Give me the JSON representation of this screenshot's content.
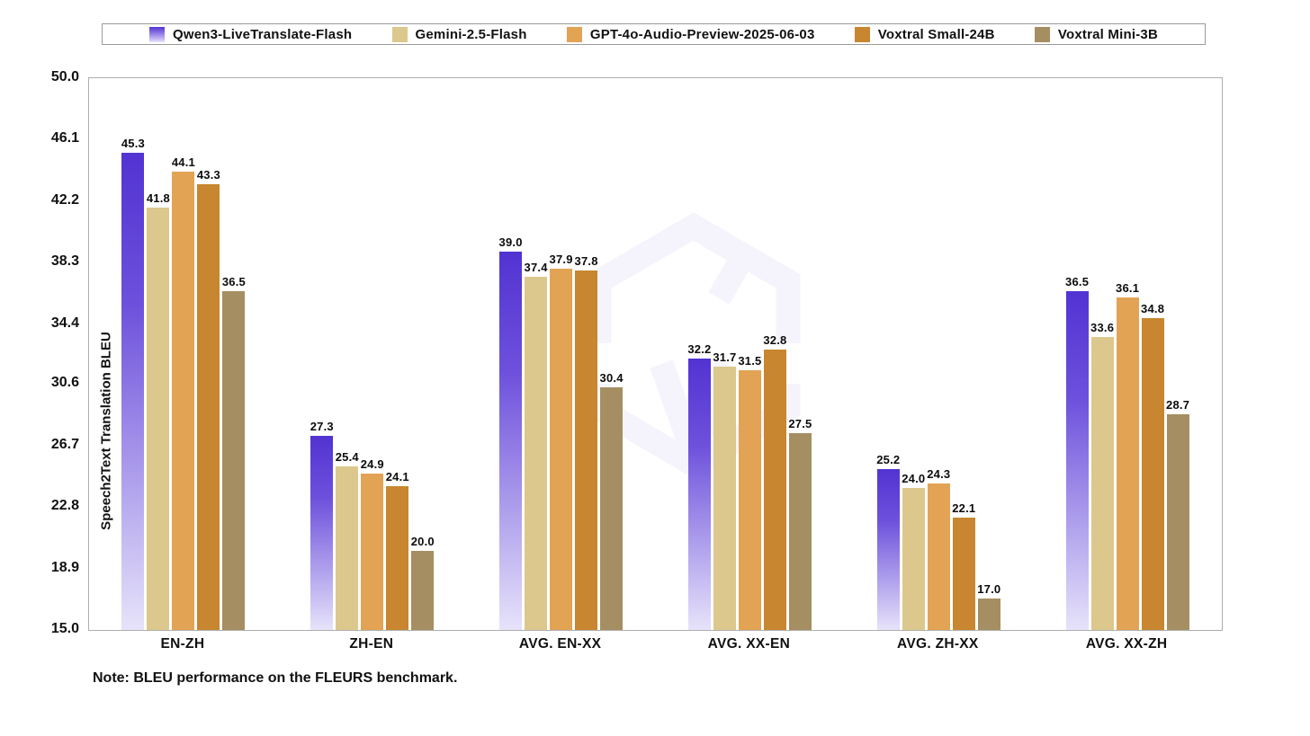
{
  "legend": {
    "items": [
      "Qwen3-LiveTranslate-Flash",
      "Gemini-2.5-Flash",
      "GPT-4o-Audio-Preview-2025-06-03",
      "Voxtral Small-24B",
      "Voxtral Mini-3B"
    ]
  },
  "chart_data": {
    "type": "bar",
    "title": "",
    "xlabel": "",
    "ylabel": "Speech2Text Translation BLEU",
    "ylim": [
      15.0,
      50.0
    ],
    "ytick_labels": [
      "50.0",
      "46.1",
      "42.2",
      "38.3",
      "34.4",
      "30.6",
      "26.7",
      "22.8",
      "18.9",
      "15.0"
    ],
    "grid": false,
    "legend_position": "top",
    "categories": [
      "EN-ZH",
      "ZH-EN",
      "AVG. EN-XX",
      "AVG. XX-EN",
      "AVG. ZH-XX",
      "AVG. XX-ZH"
    ],
    "series": [
      {
        "name": "Qwen3-LiveTranslate-Flash",
        "color_top": "#5233d2",
        "color_bottom": "#e7e3fa",
        "values": [
          45.3,
          27.3,
          39.0,
          32.2,
          25.2,
          36.5
        ]
      },
      {
        "name": "Gemini-2.5-Flash",
        "color": "#dcc88c",
        "values": [
          41.8,
          25.4,
          37.4,
          31.7,
          24.0,
          33.6
        ]
      },
      {
        "name": "GPT-4o-Audio-Preview-2025-06-03",
        "color": "#e2a355",
        "values": [
          44.1,
          24.9,
          37.9,
          31.5,
          24.3,
          36.1
        ]
      },
      {
        "name": "Voxtral Small-24B",
        "color": "#c7862f",
        "values": [
          43.3,
          24.1,
          37.8,
          32.8,
          22.1,
          34.8
        ]
      },
      {
        "name": "Voxtral Mini-3B",
        "color": "#a58e61",
        "values": [
          36.5,
          20.0,
          30.4,
          27.5,
          17.0,
          28.7
        ]
      }
    ],
    "note": "Note: BLEU performance on the FLEURS benchmark.",
    "watermark": "qwen-logo",
    "watermark_color": "#8474e2"
  }
}
